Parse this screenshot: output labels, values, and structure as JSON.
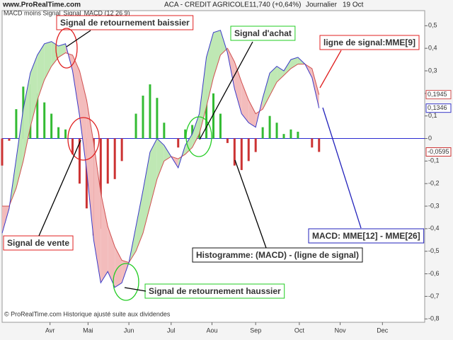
{
  "chart_data": {
    "type": "macd",
    "site": "www.ProRealTime.com",
    "title": "ACA - CREDIT AGRICOLE",
    "quote": "11,740 (+0,64%)",
    "period": "Journalier",
    "date": "19 Oct",
    "footer": "© ProRealTime.com Historique ajusté suite aux dividendes",
    "xlim": [
      0,
      300
    ],
    "xticks": [
      {
        "value": 34,
        "label": "Avr"
      },
      {
        "value": 61,
        "label": "Mai"
      },
      {
        "value": 90,
        "label": "Jun"
      },
      {
        "value": 120,
        "label": "Jul"
      },
      {
        "value": 149,
        "label": "Aou"
      },
      {
        "value": 180,
        "label": "Sep"
      },
      {
        "value": 211,
        "label": "Oct"
      },
      {
        "value": 240,
        "label": "Nov"
      },
      {
        "value": 270,
        "label": "Dec"
      }
    ],
    "ylim": [
      -0.815,
      0.567
    ],
    "yticks": [
      {
        "value": 0.5,
        "label": "0,5"
      },
      {
        "value": 0.4,
        "label": "0,4"
      },
      {
        "value": 0.3,
        "label": "0,3"
      },
      {
        "value": 0.2,
        "label": "0,2"
      },
      {
        "value": 0.1,
        "label": "0,1"
      },
      0,
      {
        "value": -0.1,
        "label": "-0,1"
      },
      {
        "value": -0.2,
        "label": "-0,2"
      },
      {
        "value": -0.3,
        "label": "-0,3"
      },
      {
        "value": -0.4,
        "label": "-0,4"
      },
      {
        "value": -0.5,
        "label": "-0,5"
      },
      {
        "value": -0.6,
        "label": "-0,6"
      },
      {
        "value": -0.7,
        "label": "-0,7"
      },
      {
        "value": -0.8,
        "label": "-0,8"
      }
    ],
    "grid": false,
    "x": [
      0,
      5,
      10,
      15,
      20,
      25,
      30,
      35,
      40,
      45,
      50,
      55,
      60,
      65,
      70,
      75,
      80,
      85,
      90,
      95,
      100,
      105,
      110,
      115,
      120,
      125,
      130,
      135,
      140,
      145,
      150,
      155,
      160,
      165,
      170,
      175,
      180,
      185,
      190,
      195,
      200,
      205,
      210,
      215,
      220,
      225
    ],
    "series": [
      {
        "name": "MACD moins Signal",
        "kind": "histogram",
        "color": "#33bb33",
        "negative_color": "#cc3333",
        "values": [
          -0.12,
          -0.01,
          0.13,
          0.23,
          0.24,
          0.2,
          0.16,
          0.11,
          0.05,
          0.04,
          -0.07,
          -0.2,
          -0.31,
          -0.43,
          -0.4,
          -0.2,
          -0.18,
          -0.1,
          0.0,
          0.11,
          0.19,
          0.24,
          0.18,
          0.07,
          0.0,
          -0.04,
          0.04,
          0.06,
          0.09,
          0.22,
          0.2,
          0.11,
          -0.02,
          -0.12,
          -0.14,
          -0.1,
          -0.06,
          0.05,
          0.1,
          0.07,
          0.02,
          0.04,
          0.03,
          0.0,
          -0.04,
          -0.0595
        ],
        "value_labels": [
          null,
          null,
          null,
          null,
          null,
          null,
          null,
          null,
          null,
          null,
          null,
          null,
          null,
          null,
          null,
          null,
          null,
          null,
          null,
          null,
          null,
          null,
          null,
          null,
          null,
          null,
          null,
          null,
          null,
          null,
          null,
          null,
          null,
          null,
          null,
          null,
          null,
          null,
          null,
          null,
          null,
          null,
          null,
          null,
          null,
          "-0,0595"
        ]
      },
      {
        "name": "Signal",
        "kind": "signal",
        "color": "#d05050",
        "values": [
          -0.3,
          -0.3,
          -0.22,
          -0.1,
          0.05,
          0.17,
          0.26,
          0.32,
          0.36,
          0.38,
          0.37,
          0.3,
          0.17,
          -0.02,
          -0.24,
          -0.39,
          -0.48,
          -0.54,
          -0.55,
          -0.5,
          -0.42,
          -0.3,
          -0.18,
          -0.1,
          -0.08,
          -0.09,
          -0.07,
          -0.04,
          0.02,
          0.14,
          0.27,
          0.37,
          0.4,
          0.34,
          0.25,
          0.17,
          0.11,
          0.13,
          0.19,
          0.25,
          0.28,
          0.31,
          0.33,
          0.33,
          0.31,
          0.1945
        ],
        "value_labels": [
          null,
          null,
          null,
          null,
          null,
          null,
          null,
          null,
          null,
          null,
          null,
          null,
          null,
          null,
          null,
          null,
          null,
          null,
          null,
          null,
          null,
          null,
          null,
          null,
          null,
          null,
          null,
          null,
          null,
          null,
          null,
          null,
          null,
          null,
          null,
          null,
          null,
          null,
          null,
          null,
          null,
          null,
          null,
          null,
          null,
          "0,1945"
        ]
      },
      {
        "name": "MACD (12 26 9)",
        "kind": "macd",
        "color": "#3a3ac8",
        "values": [
          -0.42,
          -0.31,
          -0.09,
          0.13,
          0.29,
          0.37,
          0.42,
          0.43,
          0.41,
          0.42,
          0.3,
          0.1,
          -0.14,
          -0.45,
          -0.64,
          -0.59,
          -0.66,
          -0.64,
          -0.55,
          -0.39,
          -0.23,
          -0.06,
          0.0,
          -0.03,
          -0.08,
          -0.13,
          -0.03,
          0.02,
          0.11,
          0.36,
          0.47,
          0.48,
          0.38,
          0.22,
          0.11,
          0.07,
          0.05,
          0.18,
          0.29,
          0.32,
          0.3,
          0.35,
          0.36,
          0.33,
          0.27,
          0.1346
        ],
        "value_labels": [
          null,
          null,
          null,
          null,
          null,
          null,
          null,
          null,
          null,
          null,
          null,
          null,
          null,
          null,
          null,
          null,
          null,
          null,
          null,
          null,
          null,
          null,
          null,
          null,
          null,
          null,
          null,
          null,
          null,
          null,
          null,
          null,
          null,
          null,
          null,
          null,
          null,
          null,
          null,
          null,
          null,
          null,
          null,
          null,
          null,
          "0,1346"
        ]
      }
    ],
    "annotations": [
      {
        "text": "Signal de retournement baissier",
        "color": "#e02020"
      },
      {
        "text": "Signal d'achat",
        "color": "#22cc22"
      },
      {
        "text": "ligne de signal:MME[9]",
        "color": "#e02020"
      },
      {
        "text": "Signal de vente",
        "color": "#e02020"
      },
      {
        "text": "Histogramme: (MACD) - (ligne de signal)",
        "color": "#111111"
      },
      {
        "text": "MACD: MME[12] - MME[26]",
        "color": "#2222bb"
      },
      {
        "text": "Signal de retournement haussier",
        "color": "#22cc22"
      }
    ]
  }
}
